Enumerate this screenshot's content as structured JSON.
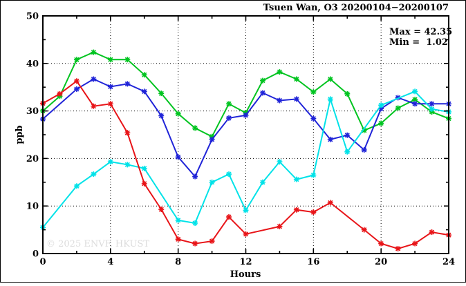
{
  "title": "Tsuen Wan, O3 20200104−20200107",
  "annotation": {
    "max_label": "Max = 42.35",
    "min_label": "Min =  1.02"
  },
  "watermark": "© 2025 ENVF, HKUST",
  "chart_data": {
    "type": "line",
    "title": "Tsuen Wan, O3 20200104−20200107",
    "xlabel": "Hours",
    "ylabel": "ppb",
    "xlim": [
      0,
      24
    ],
    "ylim": [
      0,
      50
    ],
    "x_major_ticks": [
      0,
      4,
      8,
      12,
      16,
      20,
      24
    ],
    "x_minor_ticks": [
      2,
      6,
      10,
      14,
      18,
      22
    ],
    "y_major_ticks": [
      0,
      10,
      20,
      30,
      40,
      50
    ],
    "y_minor_ticks": [
      5,
      15,
      25,
      35,
      45
    ],
    "grid": {
      "style": "dotted",
      "vertical_at": [
        4,
        8,
        12,
        16,
        20
      ],
      "horizontal_at": [
        10,
        20,
        30,
        40
      ],
      "color": "#000000"
    },
    "legend": "none",
    "marker": "asterisk",
    "x": [
      0,
      1,
      2,
      3,
      4,
      5,
      6,
      7,
      8,
      9,
      10,
      11,
      12,
      13,
      14,
      15,
      16,
      17,
      18,
      19,
      20,
      21,
      22,
      23,
      24
    ],
    "series": [
      {
        "name": "green-line",
        "color": "#00c420",
        "values": [
          30.0,
          33.1,
          40.8,
          42.35,
          40.8,
          40.8,
          37.6,
          33.7,
          29.4,
          26.4,
          24.6,
          31.5,
          29.6,
          36.4,
          38.2,
          36.7,
          34.0,
          36.7,
          33.6,
          25.9,
          27.4,
          30.6,
          32.4,
          29.8,
          28.4
        ]
      },
      {
        "name": "blue-line",
        "color": "#2024d8",
        "values": [
          28.3,
          null,
          34.6,
          36.7,
          35.1,
          35.7,
          34.1,
          29.0,
          20.3,
          16.2,
          24.0,
          28.5,
          29.1,
          33.8,
          32.2,
          32.5,
          28.4,
          24.0,
          24.9,
          21.8,
          30.5,
          32.8,
          31.5,
          31.5,
          31.5
        ]
      },
      {
        "name": "cyan-line",
        "color": "#00e2e8",
        "values": [
          5.5,
          null,
          14.2,
          16.7,
          19.3,
          18.7,
          17.9,
          null,
          7.0,
          6.4,
          15.0,
          16.7,
          9.1,
          15.0,
          19.3,
          15.6,
          16.5,
          32.5,
          21.4,
          null,
          31.2,
          null,
          34.1,
          30.4,
          29.8
        ]
      },
      {
        "name": "red-line",
        "color": "#e81418",
        "values": [
          31.6,
          33.6,
          36.3,
          31.0,
          31.5,
          25.4,
          14.7,
          9.3,
          3.0,
          2.1,
          2.6,
          7.7,
          4.1,
          null,
          5.7,
          9.2,
          8.7,
          10.7,
          null,
          5.0,
          2.1,
          1.02,
          2.1,
          4.5,
          3.9
        ]
      }
    ],
    "stats": {
      "max": 42.35,
      "min": 1.02
    }
  }
}
